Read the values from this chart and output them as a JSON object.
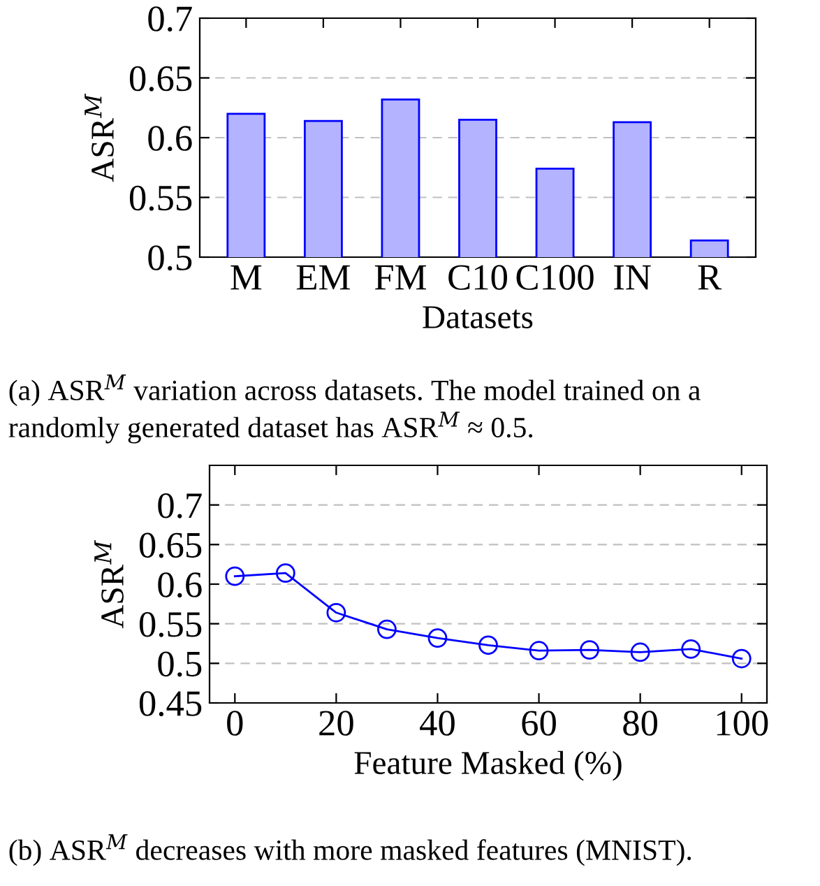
{
  "chart_data": [
    {
      "type": "bar",
      "xlabel": "Datasets",
      "ylabel": "ASR$^{M}$",
      "categories": [
        "M",
        "EM",
        "FM",
        "C10",
        "C100",
        "IN",
        "R"
      ],
      "series": [
        {
          "color": "#b3b3ff",
          "values": [
            0.62,
            0.614,
            0.632,
            0.615,
            0.574,
            0.613,
            0.514
          ]
        }
      ],
      "ylim": [
        0.5,
        0.7
      ],
      "yticks": [
        0.5,
        0.55,
        0.6,
        0.65,
        0.7
      ],
      "grid": "y",
      "annotations": [
        "(a) ASR$^{M}$ variation across datasets. The model trained on a randomly generated dataset has ASR$^{M}$ ≈ 0.5."
      ]
    },
    {
      "type": "line",
      "xlabel": "Feature Masked (%)",
      "ylabel": "ASR$^{M}$",
      "x": [
        0,
        10,
        20,
        30,
        40,
        50,
        60,
        70,
        80,
        90,
        100
      ],
      "series": [
        {
          "color": "#0000ff",
          "values": [
            0.61,
            0.614,
            0.564,
            0.543,
            0.532,
            0.523,
            0.516,
            0.517,
            0.514,
            0.518,
            0.506
          ]
        }
      ],
      "xlim": [
        -5,
        105
      ],
      "xticks": [
        0,
        20,
        40,
        60,
        80,
        100
      ],
      "ylim": [
        0.45,
        0.75
      ],
      "yticks": [
        0.45,
        0.5,
        0.55,
        0.6,
        0.65,
        0.7
      ],
      "grid": "y",
      "marker": "circle",
      "line_style": "solid",
      "annotations": [
        "(b) ASR$^{M}$ decreases with more masked features (MNIST)."
      ]
    }
  ]
}
